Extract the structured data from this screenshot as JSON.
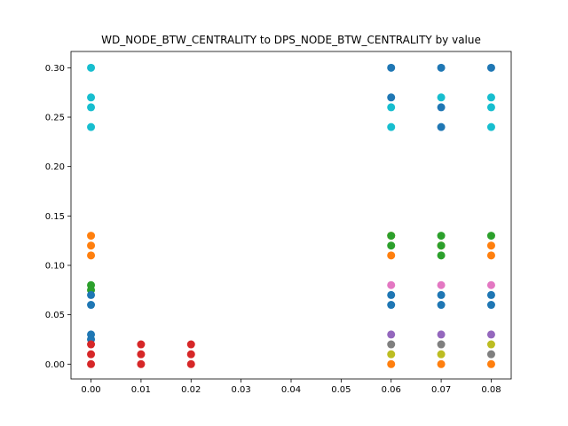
{
  "chart_data": {
    "type": "scatter",
    "title": "WD_NODE_BTW_CENTRALITY to DPS_NODE_BTW_CENTRALITY by value",
    "xlabel": "",
    "ylabel": "",
    "xlim": [
      -0.004,
      0.084
    ],
    "ylim": [
      -0.015,
      0.3165
    ],
    "x_ticks": [
      "0.00",
      "0.01",
      "0.02",
      "0.03",
      "0.04",
      "0.05",
      "0.06",
      "0.07",
      "0.08"
    ],
    "y_ticks": [
      "0.00",
      "0.05",
      "0.10",
      "0.15",
      "0.20",
      "0.25",
      "0.30"
    ],
    "grid": false,
    "legend": "none",
    "series": [
      {
        "color": "#ff7f0e",
        "x": [
          0.0,
          0.0,
          0.0,
          0.06,
          0.07,
          0.08,
          0.06,
          0.06,
          0.07,
          0.08,
          0.08
        ],
        "y": [
          0.13,
          0.12,
          0.11,
          0.0,
          0.0,
          0.0,
          0.11,
          0.13,
          0.12,
          0.12,
          0.11
        ]
      },
      {
        "color": "#2ca02c",
        "x": [
          0.0,
          0.0,
          0.06,
          0.06,
          0.07,
          0.07,
          0.07,
          0.08
        ],
        "y": [
          0.08,
          0.075,
          0.13,
          0.12,
          0.13,
          0.12,
          0.11,
          0.13
        ]
      },
      {
        "color": "#1f77b4",
        "x": [
          0.0,
          0.0,
          0.0,
          0.0,
          0.06,
          0.06,
          0.06,
          0.06,
          0.07,
          0.07,
          0.07,
          0.07,
          0.07,
          0.08,
          0.08,
          0.08
        ],
        "y": [
          0.07,
          0.06,
          0.03,
          0.025,
          0.3,
          0.27,
          0.07,
          0.06,
          0.3,
          0.26,
          0.24,
          0.07,
          0.06,
          0.3,
          0.07,
          0.06
        ]
      },
      {
        "color": "#d62728",
        "x": [
          0.0,
          0.0,
          0.0,
          0.01,
          0.01,
          0.01,
          0.02,
          0.02,
          0.02
        ],
        "y": [
          0.02,
          0.01,
          0.0,
          0.02,
          0.01,
          0.0,
          0.02,
          0.01,
          0.0
        ]
      },
      {
        "color": "#e377c2",
        "x": [
          0.06,
          0.07,
          0.08
        ],
        "y": [
          0.08,
          0.08,
          0.08
        ]
      },
      {
        "color": "#9467bd",
        "x": [
          0.06,
          0.07,
          0.08
        ],
        "y": [
          0.03,
          0.03,
          0.03
        ]
      },
      {
        "color": "#7f7f7f",
        "x": [
          0.06,
          0.07,
          0.08
        ],
        "y": [
          0.02,
          0.02,
          0.01
        ]
      },
      {
        "color": "#bcbd22",
        "x": [
          0.06,
          0.07,
          0.08
        ],
        "y": [
          0.01,
          0.01,
          0.02
        ]
      },
      {
        "color": "#17becf",
        "x": [
          0.0,
          0.0,
          0.0,
          0.0,
          0.06,
          0.06,
          0.07,
          0.08,
          0.08,
          0.08
        ],
        "y": [
          0.3,
          0.27,
          0.26,
          0.24,
          0.26,
          0.24,
          0.27,
          0.27,
          0.26,
          0.24
        ]
      }
    ]
  }
}
